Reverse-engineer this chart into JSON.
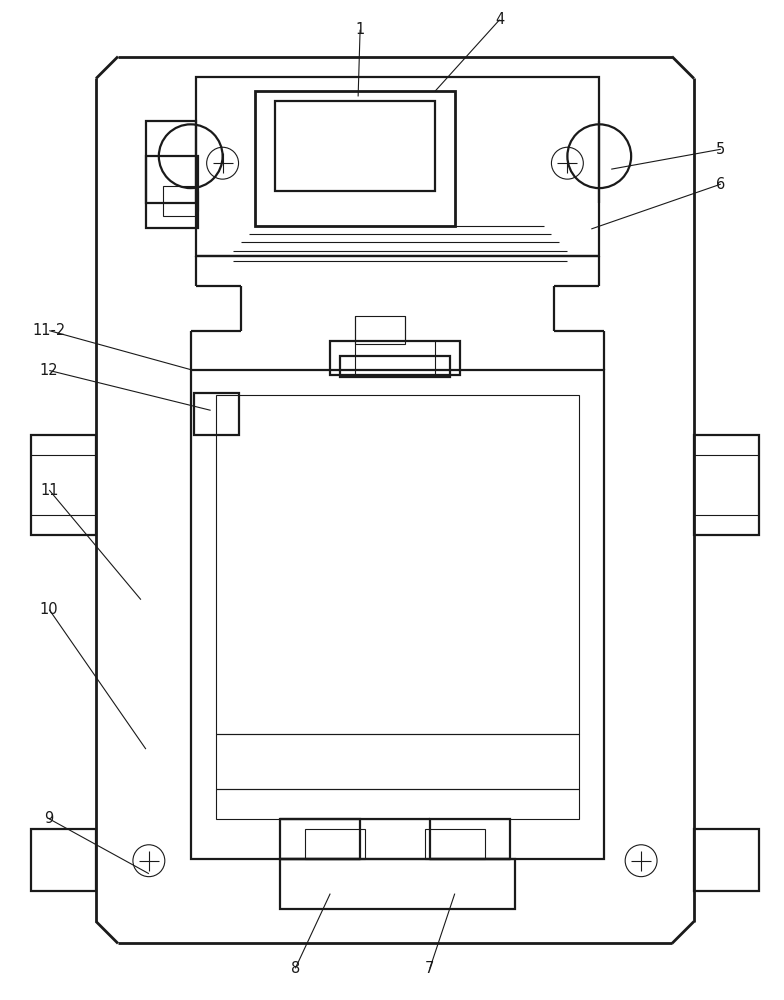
{
  "bg_color": "#ffffff",
  "lc": "#1a1a1a",
  "lw_main": 1.6,
  "lw_thin": 0.8,
  "lw_thick": 2.0,
  "fig_w": 7.84,
  "fig_h": 10.0
}
